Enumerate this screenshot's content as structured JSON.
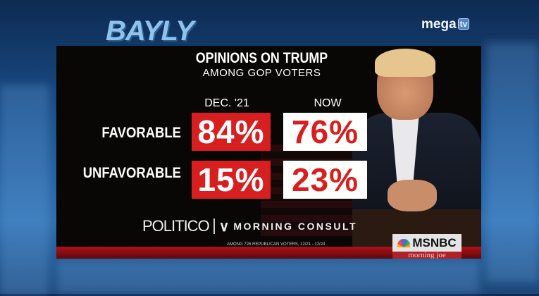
{
  "channel": {
    "show_logo": "BAYLY",
    "network_logo": "mega",
    "network_logo_badge": "tv"
  },
  "graphic": {
    "title": "OPINIONS ON TRUMP",
    "subtitle": "AMONG GOP VOTERS",
    "source": {
      "politico": "POLITICO",
      "morning_consult": "MORNING CONSULT"
    },
    "footnote": "AMONG 726 REPUBLICAN VOTERS, 12/21 - 12/24"
  },
  "broadcast": {
    "msnbc": "MSNBC",
    "show": "morning joe"
  },
  "chart_data": {
    "type": "table",
    "title": "OPINIONS ON TRUMP",
    "subtitle": "AMONG GOP VOTERS",
    "columns": [
      "DEC. '21",
      "NOW"
    ],
    "rows": [
      {
        "label": "FAVORABLE",
        "values": [
          "84%",
          "76%"
        ]
      },
      {
        "label": "UNFAVORABLE",
        "values": [
          "15%",
          "23%"
        ]
      }
    ],
    "colors": {
      "red": "#d71f1f",
      "white": "#ffffff"
    }
  }
}
